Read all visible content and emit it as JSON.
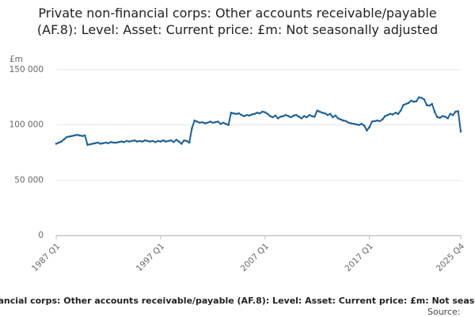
{
  "chart_data": {
    "type": "line",
    "title": "Private non-financial corps: Other accounts receivable/payable (AF.8): Level: Asset: Current price: £m: Not seasonally adjusted",
    "y_label": "£m",
    "source": "Source:",
    "categories": [
      "1987 Q1",
      null,
      null,
      null,
      null,
      null,
      null,
      null,
      null,
      null,
      null,
      null,
      null,
      null,
      null,
      null,
      null,
      null,
      null,
      null,
      null,
      null,
      null,
      null,
      null,
      null,
      null,
      null,
      null,
      null,
      null,
      null,
      null,
      null,
      null,
      null,
      null,
      null,
      null,
      null,
      "1997 Q1",
      null,
      null,
      null,
      null,
      null,
      null,
      null,
      null,
      null,
      null,
      null,
      null,
      null,
      null,
      null,
      null,
      null,
      null,
      null,
      null,
      null,
      null,
      null,
      null,
      null,
      null,
      null,
      null,
      null,
      null,
      null,
      null,
      null,
      null,
      null,
      null,
      null,
      null,
      null,
      "2007 Q1",
      null,
      null,
      null,
      null,
      null,
      null,
      null,
      null,
      null,
      null,
      null,
      null,
      null,
      null,
      null,
      null,
      null,
      null,
      null,
      null,
      null,
      null,
      null,
      null,
      null,
      null,
      null,
      null,
      null,
      null,
      null,
      null,
      null,
      null,
      null,
      null,
      null,
      null,
      null,
      "2017 Q1",
      null,
      null,
      null,
      null,
      null,
      null,
      null,
      null,
      null,
      null,
      null,
      null,
      null,
      null,
      null,
      null,
      null,
      null,
      null,
      null,
      null,
      null,
      null,
      null,
      null,
      null,
      null,
      null,
      null,
      null,
      null,
      null,
      null,
      null,
      "2025 Q4"
    ],
    "series": [
      {
        "name": "Private non-financial corps: Other accounts receivable/payable (AF.8): Level: Asset: Current price: £m: Not seasonally adjusted",
        "color": "#206095",
        "values": [
          83000,
          84000,
          85000,
          87000,
          89000,
          89500,
          90000,
          90500,
          91000,
          90500,
          90000,
          90500,
          82000,
          82500,
          83000,
          83500,
          84000,
          83000,
          83500,
          84000,
          83500,
          84500,
          84000,
          84000,
          84500,
          85000,
          84500,
          85500,
          85000,
          85500,
          86000,
          85000,
          85500,
          85000,
          86000,
          85500,
          85000,
          85500,
          84500,
          85500,
          85000,
          86000,
          85000,
          85500,
          86000,
          84500,
          86500,
          85000,
          83000,
          86000,
          85500,
          84000,
          97000,
          104000,
          103000,
          102000,
          102500,
          101500,
          102000,
          103000,
          102000,
          102500,
          103000,
          101000,
          102000,
          101000,
          100000,
          111000,
          110500,
          110000,
          110500,
          109000,
          108000,
          109000,
          108500,
          109500,
          110000,
          111000,
          110500,
          112000,
          111500,
          110000,
          108000,
          107000,
          108500,
          106000,
          107500,
          108000,
          109000,
          108000,
          107000,
          108500,
          109000,
          107500,
          106000,
          108000,
          107000,
          109000,
          108000,
          107500,
          113000,
          112000,
          111000,
          110500,
          109000,
          110000,
          107000,
          108500,
          106000,
          105000,
          104000,
          103500,
          102000,
          101500,
          101000,
          100500,
          100000,
          101000,
          99500,
          95000,
          98000,
          103000,
          103500,
          104000,
          103500,
          105000,
          108000,
          109000,
          110000,
          109500,
          111000,
          110000,
          113000,
          118000,
          119000,
          120000,
          122000,
          121000,
          121500,
          125000,
          124500,
          123000,
          118000,
          117500,
          119000,
          112000,
          107000,
          106500,
          108000,
          107500,
          106000,
          110000,
          109000,
          112000,
          112500,
          94000
        ]
      }
    ],
    "ylim": [
      0,
      150000
    ],
    "yticks": [
      0,
      {
        "value": 50000,
        "label": "50 000"
      },
      {
        "value": 100000,
        "label": "100 000"
      },
      {
        "value": 150000,
        "label": "150 000"
      }
    ],
    "grid": true
  }
}
